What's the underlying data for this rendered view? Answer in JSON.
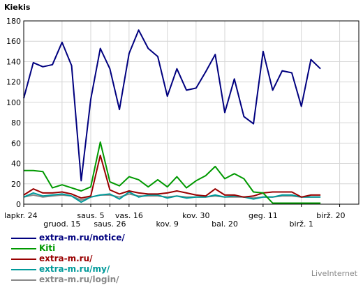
{
  "chart_data": {
    "type": "line",
    "title": "Kiekis",
    "ylim": [
      0,
      180
    ],
    "y_ticks": [
      0,
      20,
      40,
      60,
      80,
      100,
      120,
      140,
      160,
      180
    ],
    "grid": true,
    "x_count": 36,
    "x_tick_labels_row1": [
      {
        "index": 0,
        "label": "lapkr. 24"
      },
      {
        "index": 7,
        "label": "saus. 5"
      },
      {
        "index": 11,
        "label": "vas. 16"
      },
      {
        "index": 18,
        "label": "kov. 30"
      },
      {
        "index": 25,
        "label": "geg. 11"
      },
      {
        "index": 33,
        "label": "birž. 20"
      }
    ],
    "x_tick_labels_row2": [
      {
        "index": 4,
        "label": "gruod. 15"
      },
      {
        "index": 9,
        "label": "saus. 26"
      },
      {
        "index": 15,
        "label": "kov. 9"
      },
      {
        "index": 21,
        "label": "bal. 20"
      },
      {
        "index": 29,
        "label": "birž. 1"
      }
    ],
    "series": [
      {
        "name": "extra-m.ru/notice/",
        "color": "#00007f",
        "values": [
          104,
          139,
          135,
          137,
          159,
          136,
          23,
          103,
          153,
          133,
          93,
          148,
          171,
          153,
          145,
          106,
          133,
          112,
          114,
          130,
          147,
          90,
          123,
          86,
          79,
          150,
          112,
          131,
          129,
          96,
          142,
          133,
          null,
          null,
          null,
          null
        ]
      },
      {
        "name": "Kiti",
        "color": "#009900",
        "values": [
          33,
          33,
          32,
          16,
          19,
          16,
          13,
          17,
          61,
          22,
          18,
          27,
          24,
          17,
          24,
          17,
          27,
          16,
          23,
          28,
          37,
          25,
          30,
          25,
          12,
          11,
          1,
          1,
          1,
          1,
          1,
          1,
          null,
          null,
          null,
          null
        ]
      },
      {
        "name": "extra-m.ru/",
        "color": "#990000",
        "values": [
          9,
          15,
          11,
          11,
          12,
          10,
          6,
          8,
          48,
          14,
          10,
          13,
          11,
          10,
          10,
          11,
          13,
          11,
          9,
          8,
          15,
          9,
          9,
          7,
          8,
          11,
          12,
          12,
          12,
          7,
          9,
          9,
          null,
          null,
          null,
          null
        ]
      },
      {
        "name": "extra-m.ru/my/",
        "color": "#009999",
        "values": [
          7,
          11,
          8,
          9,
          10,
          8,
          2,
          7,
          9,
          10,
          5,
          12,
          7,
          9,
          9,
          6,
          8,
          6,
          7,
          7,
          9,
          7,
          8,
          7,
          5,
          7,
          7,
          9,
          9,
          7,
          7,
          7,
          null,
          null,
          null,
          null
        ]
      },
      {
        "name": "extra-m.ru/login/",
        "color": "#888888",
        "values": [
          7,
          9,
          7,
          8,
          9,
          8,
          4,
          7,
          9,
          9,
          7,
          10,
          8,
          8,
          8,
          7,
          8,
          7,
          7,
          7,
          8,
          7,
          7,
          7,
          6,
          7,
          7,
          8,
          8,
          7,
          7,
          7,
          null,
          null,
          null,
          null
        ]
      }
    ]
  },
  "credit": "LiveInternet"
}
